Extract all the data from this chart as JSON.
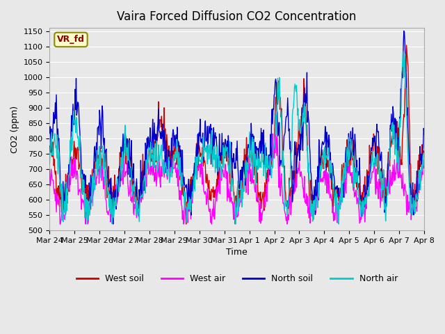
{
  "title": "Vaira Forced Diffusion CO2 Concentration",
  "xlabel": "Time",
  "ylabel": "CO2 (ppm)",
  "ylim": [
    500,
    1160
  ],
  "yticks": [
    500,
    550,
    600,
    650,
    700,
    750,
    800,
    850,
    900,
    950,
    1000,
    1050,
    1100,
    1150
  ],
  "label_tag": "VR_fd",
  "label_tag_color": "#8B0000",
  "label_tag_bg": "#FFFACD",
  "label_tag_border": "#8B8B00",
  "series_colors": {
    "West soil": "#CC0000",
    "West air": "#FF00FF",
    "North soil": "#0000CC",
    "North air": "#00CCCC"
  },
  "line_width": 1.0,
  "background_color": "#E8E8E8",
  "plot_bg_color": "#E8E8E8",
  "grid_color": "#FFFFFF",
  "x_tick_labels": [
    "Mar 24",
    "Mar 25",
    "Mar 26",
    "Mar 27",
    "Mar 28",
    "Mar 29",
    "Mar 30",
    "Mar 31",
    "Apr 1",
    "Apr 2",
    "Apr 3",
    "Apr 4",
    "Apr 5",
    "Apr 6",
    "Apr 7",
    "Apr 8"
  ],
  "n_days": 15,
  "points_per_day": 48,
  "seed": 42
}
